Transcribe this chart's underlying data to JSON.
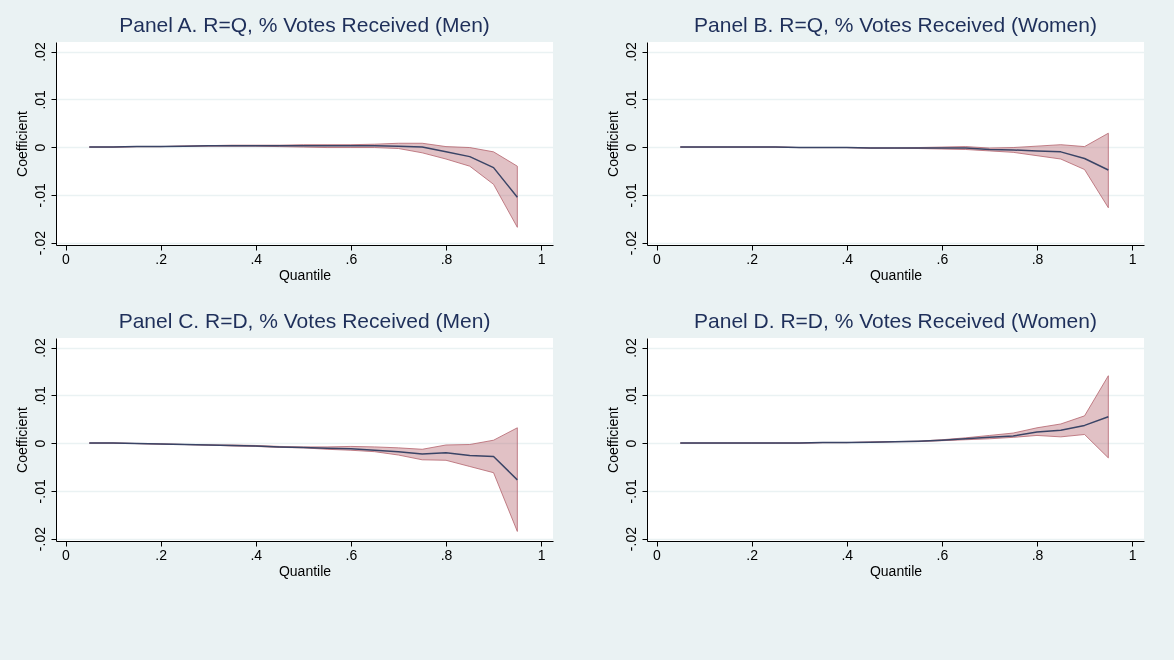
{
  "chart_data": [
    {
      "type": "line",
      "title": "Panel A. R=Q, % Votes Received (Men)",
      "xlabel": "Quantile",
      "ylabel": "Coefficient",
      "grid": "y",
      "xlim": [
        -0.02,
        1.025
      ],
      "ylim": [
        -0.0205,
        0.022
      ],
      "xticks": [
        {
          "value": 0,
          "label": "0"
        },
        {
          "value": 0.2,
          "label": ".2"
        },
        {
          "value": 0.4,
          "label": ".4"
        },
        {
          "value": 0.6,
          "label": ".6"
        },
        {
          "value": 0.8,
          "label": ".8"
        },
        {
          "value": 1,
          "label": "1"
        }
      ],
      "yticks": [
        {
          "value": -0.02,
          "label": "-.02"
        },
        {
          "value": -0.01,
          "label": "-.01"
        },
        {
          "value": 0,
          "label": "0"
        },
        {
          "value": 0.01,
          "label": ".01"
        },
        {
          "value": 0.02,
          "label": ".02"
        }
      ],
      "x": [
        0.05,
        0.1,
        0.15,
        0.2,
        0.25,
        0.3,
        0.35,
        0.4,
        0.45,
        0.5,
        0.55,
        0.6,
        0.65,
        0.7,
        0.75,
        0.8,
        0.85,
        0.9,
        0.95
      ],
      "series": [
        {
          "color": "#3a4466",
          "values": [
            0,
            0,
            0.0001,
            0.0001,
            0.0002,
            0.0003,
            0.0003,
            0.0003,
            0.0003,
            0.0003,
            0.0003,
            0.0003,
            0.0003,
            0.0002,
            0,
            -0.001,
            -0.002,
            -0.0043,
            -0.0105
          ],
          "lower": [
            0,
            0,
            0.0001,
            0.0001,
            0.0002,
            0.0002,
            0.0002,
            0.0002,
            0.0001,
            0,
            -0.0001,
            -0.0001,
            -0.0001,
            -0.0003,
            -0.0012,
            -0.0025,
            -0.004,
            -0.0078,
            -0.0168
          ],
          "upper": [
            0,
            0,
            0.0001,
            0.0001,
            0.0002,
            0.0003,
            0.0004,
            0.0004,
            0.0004,
            0.0005,
            0.0005,
            0.0005,
            0.0006,
            0.0008,
            0.0008,
            0.0001,
            -0.0001,
            -0.001,
            -0.004
          ]
        }
      ]
    },
    {
      "type": "line",
      "title": "Panel B. R=Q, % Votes Received (Women)",
      "xlabel": "Quantile",
      "ylabel": "Coefficient",
      "grid": "y",
      "xlim": [
        -0.02,
        1.025
      ],
      "ylim": [
        -0.0205,
        0.022
      ],
      "xticks": [
        {
          "value": 0,
          "label": "0"
        },
        {
          "value": 0.2,
          "label": ".2"
        },
        {
          "value": 0.4,
          "label": ".4"
        },
        {
          "value": 0.6,
          "label": ".6"
        },
        {
          "value": 0.8,
          "label": ".8"
        },
        {
          "value": 1,
          "label": "1"
        }
      ],
      "yticks": [
        {
          "value": -0.02,
          "label": "-.02"
        },
        {
          "value": -0.01,
          "label": "-.01"
        },
        {
          "value": 0,
          "label": "0"
        },
        {
          "value": 0.01,
          "label": ".01"
        },
        {
          "value": 0.02,
          "label": ".02"
        }
      ],
      "x": [
        0.05,
        0.1,
        0.15,
        0.2,
        0.25,
        0.3,
        0.35,
        0.4,
        0.45,
        0.5,
        0.55,
        0.6,
        0.65,
        0.7,
        0.75,
        0.8,
        0.85,
        0.9,
        0.95
      ],
      "series": [
        {
          "color": "#3a4466",
          "values": [
            0,
            0,
            0,
            0,
            0,
            -0.0001,
            -0.0001,
            -0.0001,
            -0.0002,
            -0.0002,
            -0.0002,
            -0.0002,
            -0.0002,
            -0.0005,
            -0.0006,
            -0.0008,
            -0.001,
            -0.0024,
            -0.0048
          ],
          "lower": [
            0,
            0,
            0,
            0,
            0,
            -0.0001,
            -0.0001,
            -0.0001,
            -0.0002,
            -0.0002,
            -0.0003,
            -0.0004,
            -0.0005,
            -0.0008,
            -0.0011,
            -0.0018,
            -0.0025,
            -0.0047,
            -0.0127
          ],
          "upper": [
            0,
            0,
            0,
            0,
            0,
            -0.0001,
            -0.0001,
            -0.0001,
            -0.0002,
            -0.0002,
            -0.0001,
            0,
            0.0001,
            -0.0002,
            -0.0001,
            0.0002,
            0.0005,
            0.0001,
            0.0029
          ]
        }
      ]
    },
    {
      "type": "line",
      "title": "Panel C. R=D, % Votes Received (Men)",
      "xlabel": "Quantile",
      "ylabel": "Coefficient",
      "grid": "y",
      "xlim": [
        -0.02,
        1.025
      ],
      "ylim": [
        -0.0205,
        0.022
      ],
      "xticks": [
        {
          "value": 0,
          "label": "0"
        },
        {
          "value": 0.2,
          "label": ".2"
        },
        {
          "value": 0.4,
          "label": ".4"
        },
        {
          "value": 0.6,
          "label": ".6"
        },
        {
          "value": 0.8,
          "label": ".8"
        },
        {
          "value": 1,
          "label": "1"
        }
      ],
      "yticks": [
        {
          "value": -0.02,
          "label": "-.02"
        },
        {
          "value": -0.01,
          "label": "-.01"
        },
        {
          "value": 0,
          "label": "0"
        },
        {
          "value": 0.01,
          "label": ".01"
        },
        {
          "value": 0.02,
          "label": ".02"
        }
      ],
      "x": [
        0.05,
        0.1,
        0.15,
        0.2,
        0.25,
        0.3,
        0.35,
        0.4,
        0.45,
        0.5,
        0.55,
        0.6,
        0.65,
        0.7,
        0.75,
        0.8,
        0.85,
        0.9,
        0.95
      ],
      "series": [
        {
          "color": "#3a4466",
          "values": [
            0,
            0,
            -0.0001,
            -0.0002,
            -0.0003,
            -0.0004,
            -0.0005,
            -0.0006,
            -0.0008,
            -0.0009,
            -0.0011,
            -0.0012,
            -0.0015,
            -0.0018,
            -0.0023,
            -0.002,
            -0.0026,
            -0.0028,
            -0.0077
          ],
          "lower": [
            0,
            0,
            -0.0001,
            -0.0002,
            -0.0003,
            -0.0004,
            -0.0006,
            -0.0007,
            -0.0009,
            -0.001,
            -0.0013,
            -0.0015,
            -0.0018,
            -0.0025,
            -0.0035,
            -0.0036,
            -0.0049,
            -0.0062,
            -0.0185
          ],
          "upper": [
            0,
            0,
            -0.0001,
            -0.0002,
            -0.0003,
            -0.0004,
            -0.0004,
            -0.0005,
            -0.0007,
            -0.0008,
            -0.0008,
            -0.0007,
            -0.0008,
            -0.001,
            -0.0013,
            -0.0004,
            -0.0003,
            0.0006,
            0.0032
          ]
        }
      ]
    },
    {
      "type": "line",
      "title": "Panel D. R=D, % Votes Received (Women)",
      "xlabel": "Quantile",
      "ylabel": "Coefficient",
      "grid": "y",
      "xlim": [
        -0.02,
        1.025
      ],
      "ylim": [
        -0.0205,
        0.022
      ],
      "xticks": [
        {
          "value": 0,
          "label": "0"
        },
        {
          "value": 0.2,
          "label": ".2"
        },
        {
          "value": 0.4,
          "label": ".4"
        },
        {
          "value": 0.6,
          "label": ".6"
        },
        {
          "value": 0.8,
          "label": ".8"
        },
        {
          "value": 1,
          "label": "1"
        }
      ],
      "yticks": [
        {
          "value": -0.02,
          "label": "-.02"
        },
        {
          "value": -0.01,
          "label": "-.01"
        },
        {
          "value": 0,
          "label": "0"
        },
        {
          "value": 0.01,
          "label": ".01"
        },
        {
          "value": 0.02,
          "label": ".02"
        }
      ],
      "x": [
        0.05,
        0.1,
        0.15,
        0.2,
        0.25,
        0.3,
        0.35,
        0.4,
        0.45,
        0.5,
        0.55,
        0.6,
        0.65,
        0.7,
        0.75,
        0.8,
        0.85,
        0.9,
        0.95
      ],
      "series": [
        {
          "color": "#3a4466",
          "values": [
            0,
            0,
            0,
            0,
            0,
            0,
            0.0001,
            0.0001,
            0.0002,
            0.0003,
            0.0004,
            0.0006,
            0.0009,
            0.0012,
            0.0015,
            0.0023,
            0.0027,
            0.0037,
            0.0055
          ],
          "lower": [
            0,
            0,
            0,
            0,
            0,
            0,
            0.0001,
            0.0001,
            0.0002,
            0.0003,
            0.0003,
            0.0005,
            0.0007,
            0.0009,
            0.0012,
            0.0016,
            0.0013,
            0.0018,
            -0.0031
          ],
          "upper": [
            0,
            0,
            0,
            0,
            0,
            0,
            0.0001,
            0.0001,
            0.0002,
            0.0003,
            0.0004,
            0.0007,
            0.0011,
            0.0016,
            0.0021,
            0.0032,
            0.004,
            0.0057,
            0.0141
          ]
        }
      ]
    }
  ]
}
